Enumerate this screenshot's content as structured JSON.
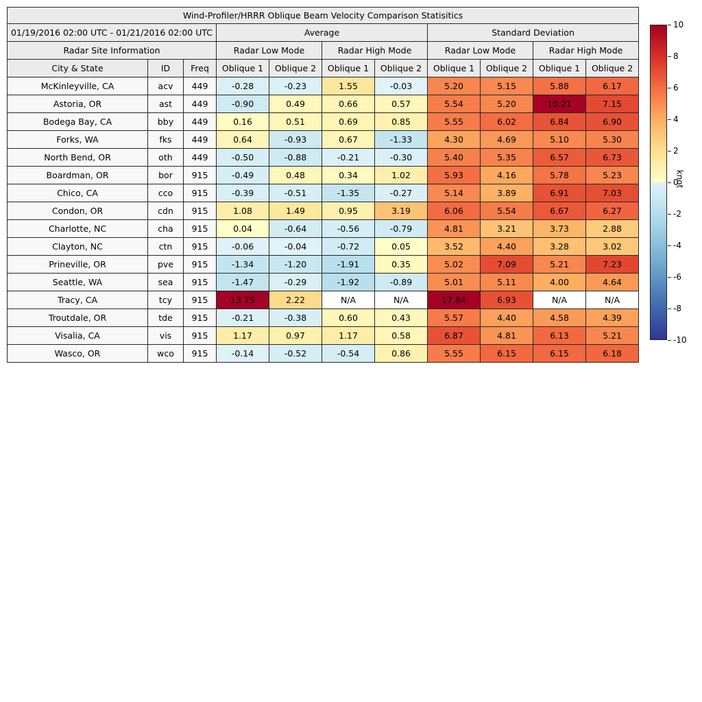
{
  "labels": {
    "title": "Wind-Profiler/HRRR Oblique Beam Velocity Comparison Statisitics",
    "date_range": "01/19/2016 02:00 UTC - 01/21/2016 02:00 UTC",
    "average": "Average",
    "std_dev": "Standard Deviation",
    "radar_site_info": "Radar Site Information",
    "radar_low_mode": "Radar Low Mode",
    "radar_high_mode": "Radar High Mode",
    "city_state": "City & State",
    "id": "ID",
    "freq": "Freq",
    "oblique1": "Oblique 1",
    "oblique2": "Oblique 2"
  },
  "colorbar": {
    "label": "knot",
    "min": -10,
    "max": 10,
    "ticks": [
      10,
      8,
      6,
      4,
      2,
      0,
      -2,
      -4,
      -6,
      -8,
      -10
    ],
    "colormap": {
      "negative": [
        [
          0,
          "#e1f3f8"
        ],
        [
          2.5,
          "#abd9e9"
        ],
        [
          5,
          "#74add1"
        ],
        [
          7.5,
          "#4575b4"
        ],
        [
          10,
          "#313695"
        ]
      ],
      "positive": [
        [
          0,
          "#ffffc9"
        ],
        [
          2,
          "#fee090"
        ],
        [
          4,
          "#fdae61"
        ],
        [
          6,
          "#f46d43"
        ],
        [
          8,
          "#d73027"
        ],
        [
          10,
          "#a50026"
        ]
      ]
    },
    "na_color": "#ffffff"
  },
  "chart_data": {
    "type": "heatmap",
    "title": "Wind-Profiler/HRRR Oblique Beam Velocity Comparison Statisitics",
    "subtitle_date_range": "01/19/2016 02:00 UTC - 01/21/2016 02:00 UTC",
    "unit": "knot",
    "value_range": [
      -10,
      10
    ],
    "column_groups": [
      "Average",
      "Standard Deviation"
    ],
    "mode_groups": [
      "Radar Low Mode",
      "Radar High Mode"
    ],
    "value_columns": [
      "Avg Low Oblique 1",
      "Avg Low Oblique 2",
      "Avg High Oblique 1",
      "Avg High Oblique 2",
      "Std Low Oblique 1",
      "Std Low Oblique 2",
      "Std High Oblique 1",
      "Std High Oblique 2"
    ],
    "rows": [
      {
        "city": "McKinleyville, CA",
        "id": "acv",
        "freq": "449",
        "values": [
          "-0.28",
          "-0.23",
          "1.55",
          "-0.03",
          "5.20",
          "5.15",
          "5.88",
          "6.17"
        ]
      },
      {
        "city": "Astoria, OR",
        "id": "ast",
        "freq": "449",
        "values": [
          "-0.90",
          "0.49",
          "0.66",
          "0.57",
          "5.54",
          "5.20",
          "10.21",
          "7.15"
        ]
      },
      {
        "city": "Bodega Bay, CA",
        "id": "bby",
        "freq": "449",
        "values": [
          "0.16",
          "0.51",
          "0.69",
          "0.85",
          "5.55",
          "6.02",
          "6.84",
          "6.90"
        ]
      },
      {
        "city": "Forks, WA",
        "id": "fks",
        "freq": "449",
        "values": [
          "0.64",
          "-0.93",
          "0.67",
          "-1.33",
          "4.30",
          "4.69",
          "5.10",
          "5.30"
        ]
      },
      {
        "city": "North Bend, OR",
        "id": "oth",
        "freq": "449",
        "values": [
          "-0.50",
          "-0.88",
          "-0.21",
          "-0.30",
          "5.40",
          "5.35",
          "6.57",
          "6.73"
        ]
      },
      {
        "city": "Boardman, OR",
        "id": "bor",
        "freq": "915",
        "values": [
          "-0.49",
          "0.48",
          "0.34",
          "1.02",
          "5.93",
          "4.16",
          "5.78",
          "5.23"
        ]
      },
      {
        "city": "Chico, CA",
        "id": "cco",
        "freq": "915",
        "values": [
          "-0.39",
          "-0.51",
          "-1.35",
          "-0.27",
          "5.14",
          "3.89",
          "6.91",
          "7.03"
        ]
      },
      {
        "city": "Condon, OR",
        "id": "cdn",
        "freq": "915",
        "values": [
          "1.08",
          "1.49",
          "0.95",
          "3.19",
          "6.06",
          "5.54",
          "6.67",
          "6.27"
        ]
      },
      {
        "city": "Charlotte, NC",
        "id": "cha",
        "freq": "915",
        "values": [
          "0.04",
          "-0.64",
          "-0.56",
          "-0.79",
          "4.81",
          "3.21",
          "3.73",
          "2.88"
        ]
      },
      {
        "city": "Clayton, NC",
        "id": "ctn",
        "freq": "915",
        "values": [
          "-0.06",
          "-0.04",
          "-0.72",
          "0.05",
          "3.52",
          "4.40",
          "3.28",
          "3.02"
        ]
      },
      {
        "city": "Prineville, OR",
        "id": "pve",
        "freq": "915",
        "values": [
          "-1.34",
          "-1.20",
          "-1.91",
          "0.35",
          "5.02",
          "7.09",
          "5.21",
          "7.23"
        ]
      },
      {
        "city": "Seattle, WA",
        "id": "sea",
        "freq": "915",
        "values": [
          "-1.47",
          "-0.29",
          "-1.92",
          "-0.89",
          "5.01",
          "5.11",
          "4.00",
          "4.64"
        ]
      },
      {
        "city": "Tracy, CA",
        "id": "tcy",
        "freq": "915",
        "values": [
          "13.75",
          "2.22",
          "N/A",
          "N/A",
          "17.84",
          "6.93",
          "N/A",
          "N/A"
        ]
      },
      {
        "city": "Troutdale, OR",
        "id": "tde",
        "freq": "915",
        "values": [
          "-0.21",
          "-0.38",
          "0.60",
          "0.43",
          "5.57",
          "4.40",
          "4.58",
          "4.39"
        ]
      },
      {
        "city": "Visalia, CA",
        "id": "vis",
        "freq": "915",
        "values": [
          "1.17",
          "0.97",
          "1.17",
          "0.58",
          "6.87",
          "4.81",
          "6.13",
          "5.21"
        ]
      },
      {
        "city": "Wasco, OR",
        "id": "wco",
        "freq": "915",
        "values": [
          "-0.14",
          "-0.52",
          "-0.54",
          "0.86",
          "5.55",
          "6.15",
          "6.15",
          "6.18"
        ]
      }
    ]
  }
}
